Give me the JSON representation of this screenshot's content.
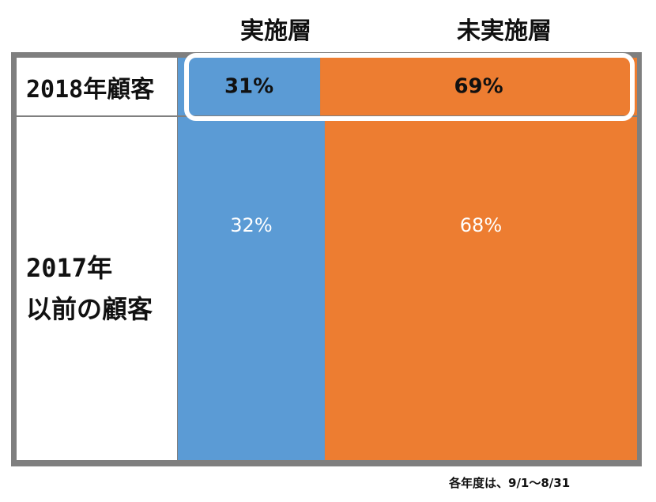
{
  "chart_data": {
    "type": "bar",
    "stacked": "percent",
    "orientation": "horizontal",
    "categories": [
      "2018年顧客",
      "2017年\n以前の顧客"
    ],
    "series": [
      {
        "name": "実施層",
        "values": [
          31,
          32
        ],
        "color": "#5b9bd5"
      },
      {
        "name": "未実施層",
        "values": [
          69,
          68
        ],
        "color": "#ed7d31"
      }
    ],
    "data_labels": [
      [
        "31%",
        "69%"
      ],
      [
        "32%",
        "68%"
      ]
    ],
    "highlighted_category": "2018年顧客",
    "xlim": [
      0,
      100
    ],
    "grid": false,
    "legend": "top"
  },
  "colors": {
    "frame": "#7f7f7f",
    "highlight_outline": "#ffffff",
    "label_dark": "#111111",
    "label_light": "#ffffff"
  },
  "footnote": "各年度は、9/1～8/31"
}
